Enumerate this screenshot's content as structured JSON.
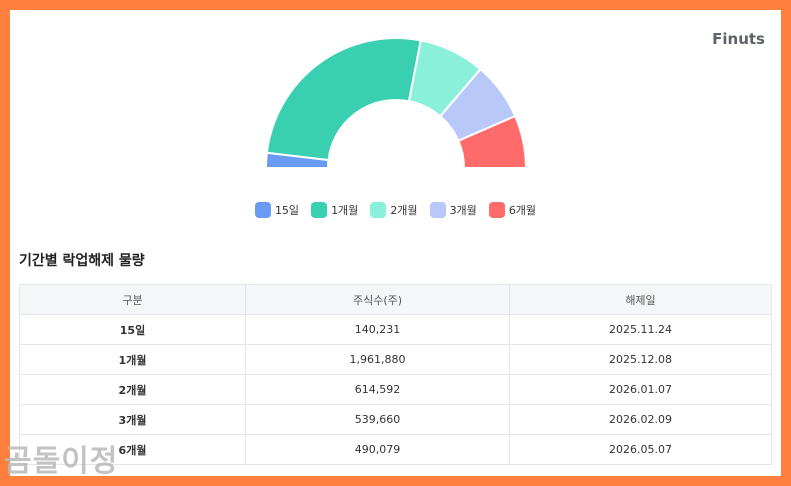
{
  "brand": "Finuts",
  "chart_data": {
    "type": "pie",
    "variant": "half-donut",
    "title": "기간별 락업해제 물량",
    "categories": [
      "15일",
      "1개월",
      "2개월",
      "3개월",
      "6개월"
    ],
    "values": [
      140231,
      1961880,
      614592,
      539660,
      490079
    ],
    "colors": [
      "#6a9bf4",
      "#38d0b0",
      "#8bf0da",
      "#b8c9f9",
      "#ff6b6b"
    ]
  },
  "section_title": "기간별 락업해제 물량",
  "table": {
    "headers": [
      "구분",
      "주식수(주)",
      "해제일"
    ],
    "rows": [
      [
        "15일",
        "140,231",
        "2025.11.24"
      ],
      [
        "1개월",
        "1,961,880",
        "2025.12.08"
      ],
      [
        "2개월",
        "614,592",
        "2026.01.07"
      ],
      [
        "3개월",
        "539,660",
        "2026.02.09"
      ],
      [
        "6개월",
        "490,079",
        "2026.05.07"
      ]
    ]
  },
  "watermark": "곰돌이정"
}
